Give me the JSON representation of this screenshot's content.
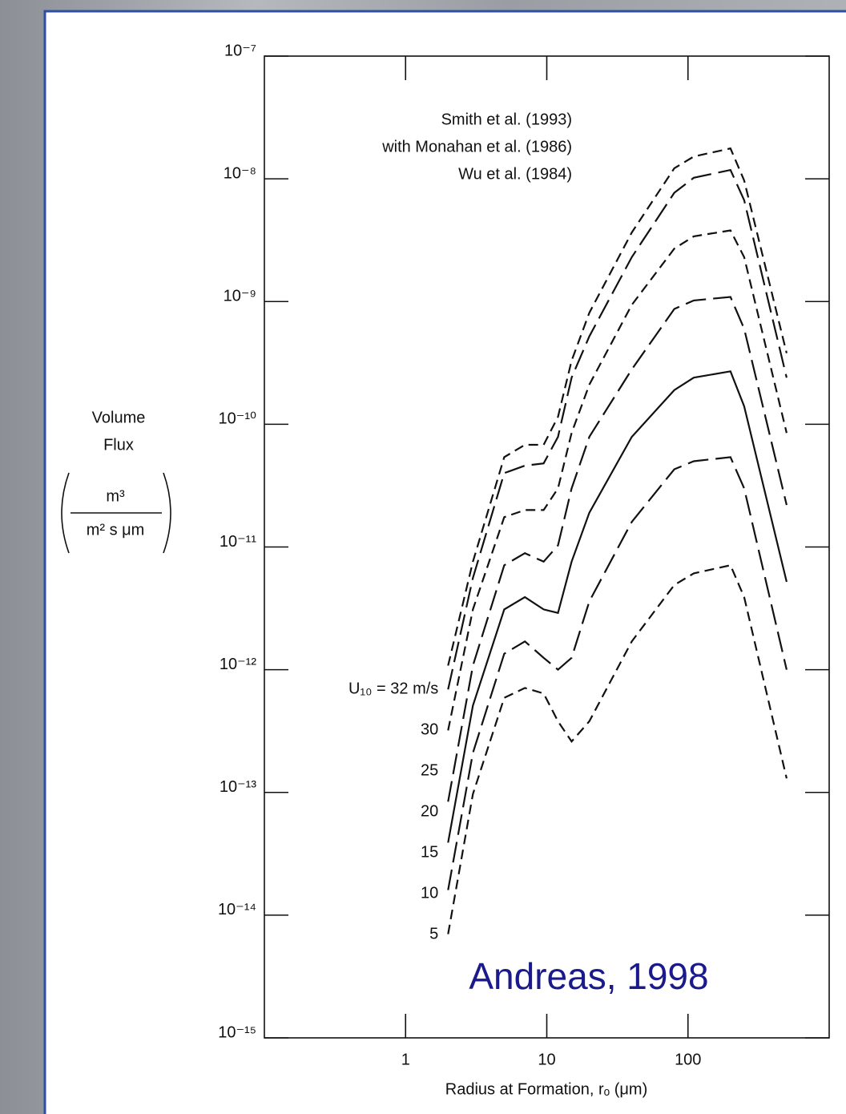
{
  "chart_data": {
    "type": "line",
    "log_x": true,
    "log_y": true,
    "title": "Andreas, 1998",
    "x_label": "Radius at Formation, rₒ (μm)",
    "y_label": [
      "Volume",
      "Flux"
    ],
    "y_unit": {
      "numerator": "m³",
      "denominator": "m² s μm"
    },
    "annotations": [
      "Smith et al. (1993)",
      "with Monahan et al. (1986)",
      "Wu et al. (1984)"
    ],
    "xlim": [
      0.1,
      1000
    ],
    "xticks": [
      1,
      10,
      100
    ],
    "ylim": [
      1e-15,
      1e-07
    ],
    "yticks": [
      {
        "value": 1e-15,
        "label": "10⁻¹⁵"
      },
      {
        "value": 1e-14,
        "label": "10⁻¹⁴"
      },
      {
        "value": 1e-13,
        "label": "10⁻¹³"
      },
      {
        "value": 1e-12,
        "label": "10⁻¹²"
      },
      {
        "value": 1e-11,
        "label": "10⁻¹¹"
      },
      {
        "value": 1e-10,
        "label": "10⁻¹⁰"
      },
      {
        "value": 1e-09,
        "label": "10⁻⁹"
      },
      {
        "value": 1e-08,
        "label": "10⁻⁸"
      },
      {
        "value": 1e-07,
        "label": "10⁻⁷"
      }
    ],
    "x": [
      2,
      3,
      5,
      7,
      9.5,
      12,
      15,
      20,
      40,
      80,
      110,
      200,
      250,
      500
    ],
    "series": [
      {
        "name": "U₁₀ = 32 m/s",
        "color": "#111111",
        "dash": "short",
        "values": [
          1.08e-12,
          7.6e-12,
          5.4e-11,
          6.8e-11,
          6.8e-11,
          1.15e-10,
          3.3e-10,
          8.1e-10,
          3.65e-09,
          1.22e-08,
          1.52e-08,
          1.77e-08,
          9.7e-09,
          3.8e-10
        ]
      },
      {
        "name": "30",
        "color": "#111111",
        "dash": "long",
        "values": [
          6.9e-13,
          5.6e-12,
          4e-11,
          4.6e-11,
          4.8e-11,
          7.9e-11,
          2.4e-10,
          5.2e-10,
          2.3e-09,
          7.7e-09,
          1.02e-08,
          1.18e-08,
          6.7e-09,
          2.4e-10
        ]
      },
      {
        "name": "25",
        "color": "#111111",
        "dash": "short",
        "values": [
          3.2e-13,
          3.1e-12,
          1.75e-11,
          2e-11,
          2e-11,
          3e-11,
          8.5e-11,
          2.1e-10,
          9.4e-10,
          2.7e-09,
          3.4e-09,
          3.8e-09,
          2.3e-09,
          8.5e-11
        ]
      },
      {
        "name": "20",
        "color": "#111111",
        "dash": "long",
        "values": [
          8.4e-14,
          1.08e-12,
          7.1e-12,
          8.9e-12,
          7.6e-12,
          1.03e-11,
          3e-11,
          7.9e-11,
          2.8e-10,
          8.7e-10,
          1.02e-09,
          1.09e-09,
          6e-10,
          2.2e-11
        ]
      },
      {
        "name": "15",
        "color": "#111111",
        "dash": "solid",
        "values": [
          3.9e-14,
          5.1e-13,
          3.1e-12,
          3.9e-12,
          3.1e-12,
          2.9e-12,
          7.6e-12,
          1.9e-11,
          7.9e-11,
          1.9e-10,
          2.4e-10,
          2.7e-10,
          1.4e-10,
          5.2e-12
        ]
      },
      {
        "name": "10",
        "color": "#111111",
        "dash": "long",
        "values": [
          1.6e-14,
          2.1e-13,
          1.35e-12,
          1.7e-12,
          1.25e-12,
          1e-12,
          1.25e-12,
          3.6e-12,
          1.6e-11,
          4.3e-11,
          5e-11,
          5.4e-11,
          3e-11,
          1e-12
        ]
      },
      {
        "name": "5",
        "color": "#111111",
        "dash": "short",
        "values": [
          7e-15,
          9.7e-14,
          5.9e-13,
          7.1e-13,
          6.4e-13,
          3.8e-13,
          2.6e-13,
          3.8e-13,
          1.7e-12,
          4.9e-12,
          6.1e-12,
          7.1e-12,
          3.9e-12,
          1.3e-13
        ]
      }
    ]
  }
}
